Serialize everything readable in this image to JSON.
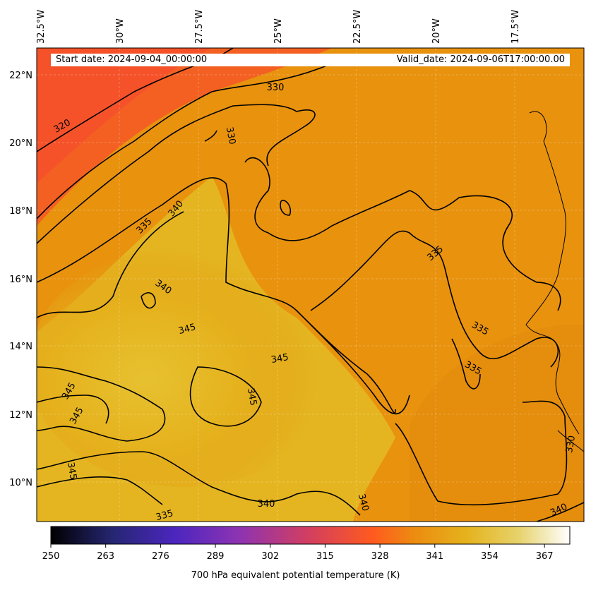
{
  "banner": {
    "start": "Start date: 2024-09-04_00:00:00",
    "valid": "Valid_date: 2024-09-06T17:00:00.00"
  },
  "map": {
    "lon_ticks": [
      "32.5°W",
      "30°W",
      "27.5°W",
      "25°W",
      "22.5°W",
      "20°W",
      "17.5°W"
    ],
    "lat_ticks": [
      "22°N",
      "20°N",
      "18°N",
      "16°N",
      "14°N",
      "12°N",
      "10°N"
    ],
    "contour_levels_shown": [
      "320",
      "330",
      "335",
      "340",
      "345"
    ],
    "contour_labels": [
      "330",
      "320",
      "330",
      "340",
      "335",
      "340",
      "345",
      "345",
      "345",
      "345",
      "345",
      "345",
      "335",
      "335",
      "335",
      "340",
      "340",
      "335",
      "340",
      "330"
    ],
    "colormap": "CMRmap",
    "field": "700 hPa equivalent potential temperature"
  },
  "colorbar": {
    "ticks": [
      "250",
      "263",
      "276",
      "289",
      "302",
      "315",
      "328",
      "341",
      "354",
      "367"
    ],
    "title": "700 hPa equivalent potential temperature (K)",
    "colors": [
      "#000000",
      "#262673",
      "#4c26bf",
      "#8c33b3",
      "#d43f5e",
      "#ff5a1f",
      "#ec8c10",
      "#e5b21d",
      "#e6d26a",
      "#ffffff"
    ]
  }
}
